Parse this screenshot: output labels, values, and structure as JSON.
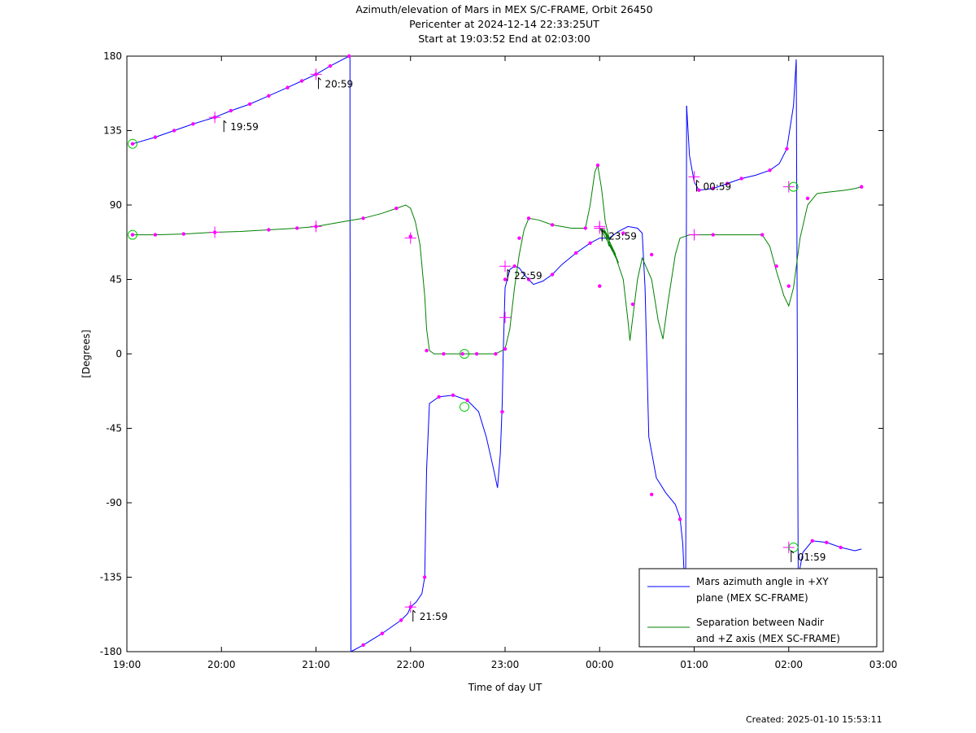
{
  "chart_data": {
    "type": "line",
    "title_lines": [
      "Azimuth/elevation of Mars in MEX S/C-FRAME,  Orbit 26450",
      "Pericenter at 2024-12-14 22:33:25UT",
      "Start at 19:03:52 End at 02:03:00"
    ],
    "xlabel": "Time of day UT",
    "ylabel": "[Degrees]",
    "xlim": [
      0,
      8
    ],
    "ylim": [
      -180,
      180
    ],
    "x_unit_note": "hours after 19:00 UT",
    "xticks": [
      0,
      1,
      2,
      3,
      4,
      5,
      6,
      7,
      8
    ],
    "xtick_labels": [
      "19:00",
      "20:00",
      "21:00",
      "22:00",
      "23:00",
      "00:00",
      "01:00",
      "02:00",
      "03:00"
    ],
    "yticks": [
      180,
      135,
      90,
      45,
      0,
      -45,
      -90,
      -135,
      -180
    ],
    "ytick_labels": [
      "180",
      "135",
      "90",
      "45",
      "0",
      "-45",
      "-90",
      "-135",
      "-180"
    ],
    "grid": false,
    "legend_position": "bottom-right",
    "series": [
      {
        "name": "Mars azimuth angle in +XY plane (MEX SC-FRAME)",
        "legend_lines": [
          "Mars azimuth angle in +XY",
          "plane (MEX SC-FRAME)"
        ],
        "color": "#0000ff",
        "segments": [
          [
            [
              0.06,
              127
            ],
            [
              0.3,
              131
            ],
            [
              0.5,
              135
            ],
            [
              0.7,
              139
            ],
            [
              0.93,
              143
            ],
            [
              1.1,
              147
            ],
            [
              1.3,
              151
            ],
            [
              1.5,
              156
            ],
            [
              1.7,
              161
            ],
            [
              1.85,
              165
            ],
            [
              2.0,
              169
            ],
            [
              2.15,
              174
            ],
            [
              2.35,
              180
            ],
            [
              2.36,
              180
            ]
          ],
          [
            [
              2.36,
              180
            ],
            [
              2.36,
              90
            ],
            [
              2.37,
              -180
            ]
          ],
          [
            [
              2.37,
              -180
            ],
            [
              2.5,
              -176
            ],
            [
              2.7,
              -169
            ],
            [
              2.9,
              -161
            ],
            [
              2.97,
              -157
            ],
            [
              3.0,
              -153
            ],
            [
              3.06,
              -150
            ],
            [
              3.12,
              -145
            ],
            [
              3.15,
              -135
            ],
            [
              3.17,
              -70
            ],
            [
              3.2,
              -30
            ],
            [
              3.3,
              -26
            ],
            [
              3.45,
              -25
            ],
            [
              3.6,
              -28
            ],
            [
              3.72,
              -35
            ],
            [
              3.8,
              -50
            ],
            [
              3.88,
              -70
            ],
            [
              3.92,
              -81
            ],
            [
              3.95,
              -60
            ],
            [
              3.97,
              -30
            ],
            [
              3.98,
              0
            ],
            [
              4.0,
              40
            ],
            [
              4.05,
              51
            ],
            [
              4.1,
              53
            ],
            [
              4.15,
              52
            ],
            [
              4.2,
              48
            ],
            [
              4.3,
              42
            ],
            [
              4.4,
              44
            ],
            [
              4.5,
              48
            ],
            [
              4.6,
              54
            ],
            [
              4.75,
              61
            ],
            [
              4.9,
              67
            ],
            [
              5.0,
              70
            ],
            [
              5.1,
              70
            ],
            [
              5.2,
              74
            ],
            [
              5.3,
              77
            ],
            [
              5.4,
              76
            ],
            [
              5.45,
              73
            ],
            [
              5.48,
              40
            ],
            [
              5.52,
              -50
            ],
            [
              5.6,
              -75
            ],
            [
              5.7,
              -84
            ],
            [
              5.8,
              -91
            ],
            [
              5.85,
              -99
            ],
            [
              5.88,
              -115
            ],
            [
              5.9,
              -142
            ],
            [
              5.91,
              -160
            ]
          ],
          [
            [
              5.91,
              -160
            ],
            [
              5.92,
              150
            ]
          ],
          [
            [
              5.92,
              150
            ],
            [
              5.95,
              120
            ],
            [
              6.0,
              104
            ],
            [
              6.05,
              99
            ],
            [
              6.2,
              100
            ],
            [
              6.35,
              103
            ],
            [
              6.5,
              106
            ],
            [
              6.65,
              108
            ],
            [
              6.8,
              111
            ],
            [
              6.9,
              115
            ],
            [
              6.98,
              124
            ],
            [
              7.05,
              150
            ],
            [
              7.08,
              178
            ]
          ],
          [
            [
              7.08,
              178
            ],
            [
              7.1,
              -135
            ]
          ],
          [
            [
              7.1,
              -135
            ],
            [
              7.15,
              -120
            ],
            [
              7.25,
              -113
            ],
            [
              7.4,
              -114
            ],
            [
              7.55,
              -117
            ],
            [
              7.7,
              -119
            ],
            [
              7.77,
              -118
            ]
          ]
        ],
        "markers": [
          [
            0.06,
            127
          ],
          [
            0.3,
            131
          ],
          [
            0.5,
            135
          ],
          [
            0.7,
            139
          ],
          [
            0.93,
            143
          ],
          [
            1.1,
            147
          ],
          [
            1.3,
            151
          ],
          [
            1.5,
            156
          ],
          [
            1.7,
            161
          ],
          [
            1.85,
            165
          ],
          [
            2.0,
            169
          ],
          [
            2.15,
            174
          ],
          [
            2.35,
            180
          ],
          [
            2.5,
            -176
          ],
          [
            2.7,
            -169
          ],
          [
            2.9,
            -161
          ],
          [
            3.0,
            -153
          ],
          [
            3.15,
            -135
          ],
          [
            3.3,
            -26
          ],
          [
            3.45,
            -25
          ],
          [
            3.6,
            -28
          ],
          [
            3.97,
            -35
          ],
          [
            4.0,
            45
          ],
          [
            4.1,
            53
          ],
          [
            4.25,
            45
          ],
          [
            4.5,
            48
          ],
          [
            4.75,
            61
          ],
          [
            4.9,
            67
          ],
          [
            5.25,
            73
          ],
          [
            5.55,
            -85
          ],
          [
            5.85,
            -100
          ],
          [
            6.05,
            99
          ],
          [
            6.2,
            100
          ],
          [
            6.35,
            103
          ],
          [
            6.5,
            106
          ],
          [
            6.8,
            111
          ],
          [
            6.98,
            124
          ],
          [
            7.25,
            -113
          ],
          [
            7.4,
            -114
          ],
          [
            7.55,
            -117
          ]
        ],
        "big_crosses": [
          [
            0.93,
            143
          ],
          [
            2.0,
            169
          ],
          [
            3.0,
            -153
          ],
          [
            4.0,
            53
          ],
          [
            5.0,
            77
          ],
          [
            6.0,
            107
          ],
          [
            7.0,
            -117
          ]
        ],
        "circles": [
          [
            0.06,
            127
          ],
          [
            3.57,
            -32
          ],
          [
            7.05,
            -117
          ]
        ]
      },
      {
        "name": "Separation between Nadir and +Z axis (MEX SC-FRAME)",
        "legend_lines": [
          "Separation between Nadir",
          "and +Z axis (MEX SC-FRAME)"
        ],
        "color": "#008000",
        "segments": [
          [
            [
              0.06,
              72
            ],
            [
              0.3,
              72
            ],
            [
              0.6,
              72.5
            ],
            [
              0.93,
              73.5
            ],
            [
              1.2,
              74
            ],
            [
              1.5,
              75
            ],
            [
              1.8,
              76
            ],
            [
              2.0,
              77
            ],
            [
              2.3,
              80
            ],
            [
              2.5,
              82
            ],
            [
              2.7,
              85
            ],
            [
              2.85,
              88
            ],
            [
              2.95,
              90
            ],
            [
              3.0,
              88
            ],
            [
              3.05,
              80
            ],
            [
              3.1,
              66
            ],
            [
              3.15,
              35
            ],
            [
              3.17,
              15
            ],
            [
              3.2,
              2
            ],
            [
              3.25,
              0
            ],
            [
              3.5,
              0
            ],
            [
              3.9,
              0
            ],
            [
              4.0,
              3
            ],
            [
              4.05,
              15
            ],
            [
              4.1,
              40
            ],
            [
              4.15,
              60
            ],
            [
              4.2,
              75
            ],
            [
              4.25,
              82
            ],
            [
              4.35,
              81
            ],
            [
              4.5,
              78
            ],
            [
              4.7,
              76
            ],
            [
              4.85,
              76
            ],
            [
              4.9,
              90
            ],
            [
              4.95,
              110
            ],
            [
              4.98,
              114
            ],
            [
              5.02,
              100
            ],
            [
              5.06,
              80
            ],
            [
              5.1,
              70
            ],
            [
              5.05,
              75
            ],
            [
              5.1,
              65
            ],
            [
              5.1,
              70
            ],
            [
              5.0,
              76
            ],
            [
              5.15,
              62
            ],
            [
              5.2,
              55
            ],
            [
              5.1,
              66
            ],
            [
              5.17,
              60
            ],
            [
              5.07,
              72
            ]
          ],
          [
            [
              5.07,
              72
            ],
            [
              5.0,
              76
            ],
            [
              5.05,
              75
            ],
            [
              5.15,
              62
            ],
            [
              5.25,
              45
            ],
            [
              5.3,
              20
            ],
            [
              5.32,
              8
            ],
            [
              5.4,
              45
            ],
            [
              5.45,
              58
            ],
            [
              5.55,
              45
            ],
            [
              5.62,
              20
            ],
            [
              5.67,
              9
            ],
            [
              5.72,
              30
            ],
            [
              5.8,
              60
            ],
            [
              5.85,
              70
            ],
            [
              5.95,
              72
            ],
            [
              6.2,
              72
            ],
            [
              6.5,
              72
            ],
            [
              6.72,
              72
            ],
            [
              6.8,
              65
            ],
            [
              6.87,
              50
            ],
            [
              6.95,
              35
            ],
            [
              7.0,
              29
            ],
            [
              7.05,
              40
            ],
            [
              7.12,
              70
            ],
            [
              7.2,
              90
            ],
            [
              7.3,
              97
            ],
            [
              7.45,
              98
            ],
            [
              7.6,
              99
            ],
            [
              7.7,
              100
            ],
            [
              7.77,
              101
            ]
          ]
        ],
        "markers": [
          [
            0.06,
            72
          ],
          [
            0.3,
            72
          ],
          [
            0.6,
            72.5
          ],
          [
            0.93,
            73.5
          ],
          [
            1.5,
            75
          ],
          [
            1.8,
            76
          ],
          [
            2.0,
            77
          ],
          [
            2.5,
            82
          ],
          [
            2.85,
            88
          ],
          [
            3.0,
            71
          ],
          [
            3.17,
            2
          ],
          [
            3.35,
            0
          ],
          [
            3.55,
            0
          ],
          [
            3.7,
            0
          ],
          [
            3.9,
            0
          ],
          [
            4.0,
            3
          ],
          [
            4.15,
            70
          ],
          [
            4.25,
            82
          ],
          [
            4.5,
            78
          ],
          [
            4.85,
            76
          ],
          [
            4.98,
            114
          ],
          [
            5.0,
            41
          ],
          [
            5.35,
            30
          ],
          [
            5.55,
            60
          ],
          [
            6.2,
            72
          ],
          [
            6.72,
            72
          ],
          [
            6.87,
            53
          ],
          [
            7.0,
            41
          ],
          [
            7.2,
            94
          ],
          [
            7.77,
            101
          ]
        ],
        "big_crosses": [
          [
            0.93,
            73.5
          ],
          [
            2.0,
            77
          ],
          [
            3.0,
            70
          ],
          [
            4.0,
            22
          ],
          [
            5.0,
            76
          ],
          [
            6.0,
            72
          ],
          [
            7.0,
            101
          ]
        ],
        "circles": [
          [
            0.06,
            72
          ],
          [
            3.57,
            0
          ],
          [
            7.05,
            101
          ]
        ]
      }
    ],
    "annotations": [
      {
        "label": "19:59",
        "x": 1.0,
        "y": 143
      },
      {
        "label": "20:59",
        "x": 2.0,
        "y": 169
      },
      {
        "label": "21:59",
        "x": 3.0,
        "y": -153
      },
      {
        "label": "22:59",
        "x": 4.0,
        "y": 53
      },
      {
        "label": "23:59",
        "x": 5.0,
        "y": 77
      },
      {
        "label": "00:59",
        "x": 6.0,
        "y": 107
      },
      {
        "label": "01:59",
        "x": 7.0,
        "y": -117
      }
    ]
  },
  "footer": {
    "created": "Created: 2025-01-10 15:53:11"
  }
}
